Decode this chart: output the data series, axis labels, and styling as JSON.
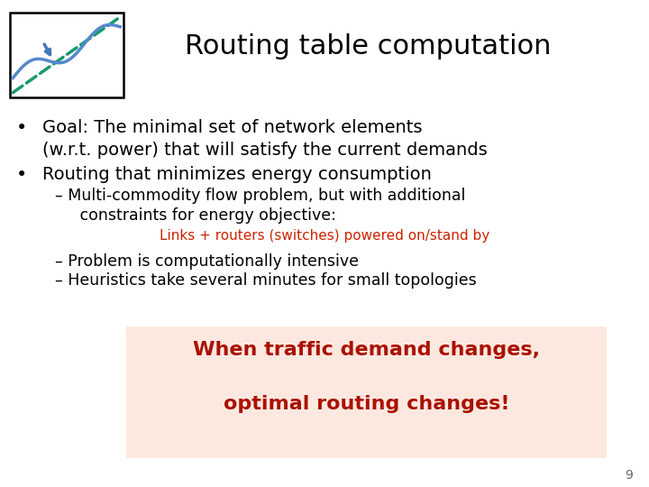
{
  "title": "Routing table computation",
  "title_fontsize": 22,
  "title_color": "#000000",
  "background_color": "#ffffff",
  "bullet1_line1": "Goal: The minimal set of network elements",
  "bullet1_line2": "(w.r.t. power) that will satisfy the current demands",
  "bullet2": "Routing that minimizes energy consumption",
  "sub1_line1": "– Multi-commodity flow problem, but with additional",
  "sub1_line2": "   constraints for energy objective:",
  "red_note": "Links + routers (switches) powered on/stand by",
  "sub2": "– Problem is computationally intensive",
  "sub3": "– Heuristics take several minutes for small topologies",
  "highlight_line1": "When traffic demand changes,",
  "highlight_line2": "optimal routing changes!",
  "highlight_bg": "#fde8e0",
  "highlight_text_color": "#aa1100",
  "red_note_color": "#cc2200",
  "bullet_fontsize": 14,
  "sub_fontsize": 12.5,
  "red_note_fontsize": 11,
  "highlight_fontsize": 16,
  "page_number": "9"
}
